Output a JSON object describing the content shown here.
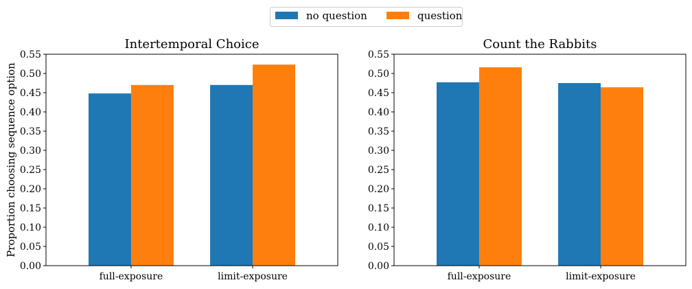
{
  "legend": {
    "entries": [
      {
        "label": "no question",
        "color": "#1f77b4"
      },
      {
        "label": "question",
        "color": "#ff7f0e"
      }
    ],
    "placement": "top-center"
  },
  "chart_data": [
    {
      "type": "bar",
      "title": "Intertemporal Choice",
      "xlabel": "",
      "ylabel": "Proportion choosing sequence option",
      "categories": [
        "full-exposure",
        "limit-exposure"
      ],
      "series": [
        {
          "name": "no question",
          "values": [
            0.448,
            0.47
          ]
        },
        {
          "name": "question",
          "values": [
            0.47,
            0.523
          ]
        }
      ],
      "ylim": [
        0,
        0.55
      ],
      "yticks": [
        "0.00",
        "0.05",
        "0.10",
        "0.15",
        "0.20",
        "0.25",
        "0.30",
        "0.35",
        "0.40",
        "0.45",
        "0.50",
        "0.55"
      ],
      "grid": false
    },
    {
      "type": "bar",
      "title": "Count the Rabbits",
      "xlabel": "",
      "ylabel": "",
      "categories": [
        "full-exposure",
        "limit-exposure"
      ],
      "series": [
        {
          "name": "no question",
          "values": [
            0.477,
            0.475
          ]
        },
        {
          "name": "question",
          "values": [
            0.516,
            0.464
          ]
        }
      ],
      "ylim": [
        0,
        0.55
      ],
      "yticks": [
        "0.00",
        "0.05",
        "0.10",
        "0.15",
        "0.20",
        "0.25",
        "0.30",
        "0.35",
        "0.40",
        "0.45",
        "0.50",
        "0.55"
      ],
      "grid": false
    }
  ]
}
